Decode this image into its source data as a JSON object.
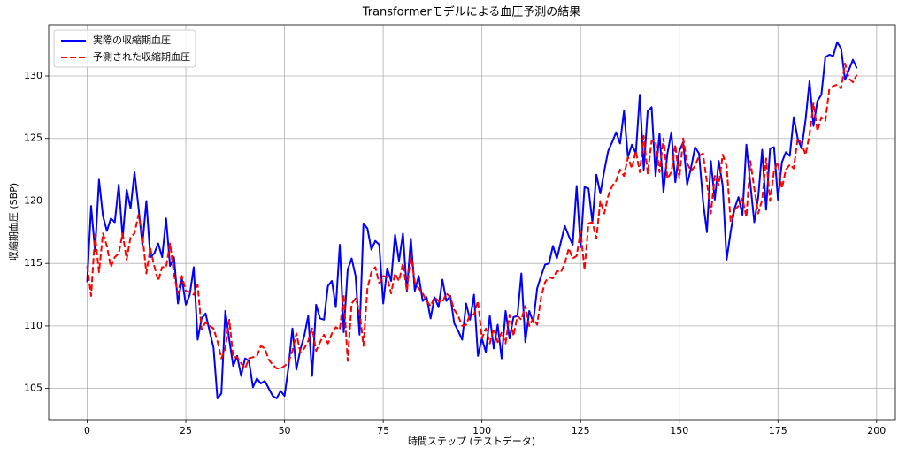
{
  "chart_data": {
    "type": "line",
    "title": "Transformerモデルによる血圧予測の結果",
    "x_label": "時間ステップ (テストデータ)",
    "y_label": "収縮期血圧 (SBP)",
    "x": [
      0,
      1,
      2,
      3,
      4,
      5,
      6,
      7,
      8,
      9,
      10,
      11,
      12,
      13,
      14,
      15,
      16,
      17,
      18,
      19,
      20,
      21,
      22,
      23,
      24,
      25,
      26,
      27,
      28,
      29,
      30,
      31,
      32,
      33,
      34,
      35,
      36,
      37,
      38,
      39,
      40,
      41,
      42,
      43,
      44,
      45,
      46,
      47,
      48,
      49,
      50,
      51,
      52,
      53,
      54,
      55,
      56,
      57,
      58,
      59,
      60,
      61,
      62,
      63,
      64,
      65,
      66,
      67,
      68,
      69,
      70,
      71,
      72,
      73,
      74,
      75,
      76,
      77,
      78,
      79,
      80,
      81,
      82,
      83,
      84,
      85,
      86,
      87,
      88,
      89,
      90,
      91,
      92,
      93,
      94,
      95,
      96,
      97,
      98,
      99,
      100,
      101,
      102,
      103,
      104,
      105,
      106,
      107,
      108,
      109,
      110,
      111,
      112,
      113,
      114,
      115,
      116,
      117,
      118,
      119,
      120,
      121,
      122,
      123,
      124,
      125,
      126,
      127,
      128,
      129,
      130,
      131,
      132,
      133,
      134,
      135,
      136,
      137,
      138,
      139,
      140,
      141,
      142,
      143,
      144,
      145,
      146,
      147,
      148,
      149,
      150,
      151,
      152,
      153,
      154,
      155,
      156,
      157,
      158,
      159,
      160,
      161,
      162,
      163,
      164,
      165,
      166,
      167,
      168,
      169,
      170,
      171,
      172,
      173,
      174,
      175,
      176,
      177,
      178,
      179,
      180,
      181,
      182,
      183,
      184,
      185,
      186,
      187,
      188,
      189,
      190,
      191,
      192,
      193,
      194,
      195
    ],
    "series": [
      {
        "name": "実際の収縮期血圧",
        "color": "#0000ff",
        "dashed": false,
        "values": [
          113.5,
          119.6,
          116.0,
          121.7,
          118.8,
          117.6,
          118.6,
          118.3,
          121.3,
          117.0,
          120.9,
          119.4,
          122.3,
          119.5,
          116.5,
          120.0,
          115.5,
          115.8,
          116.6,
          115.5,
          118.6,
          114.8,
          115.5,
          111.8,
          113.8,
          111.7,
          112.5,
          114.7,
          108.9,
          110.6,
          111.0,
          109.6,
          108.3,
          104.2,
          104.6,
          111.2,
          108.9,
          106.8,
          107.6,
          106.0,
          107.4,
          107.2,
          105.1,
          105.8,
          105.4,
          105.6,
          105.0,
          104.4,
          104.2,
          104.8,
          104.4,
          106.7,
          109.8,
          106.5,
          108.1,
          109.2,
          110.8,
          106.0,
          111.7,
          110.6,
          110.5,
          113.2,
          113.6,
          111.5,
          116.5,
          109.5,
          114.5,
          115.4,
          114.0,
          109.3,
          118.2,
          117.8,
          116.1,
          116.8,
          116.5,
          111.8,
          114.6,
          113.6,
          117.3,
          115.2,
          117.4,
          112.8,
          117.0,
          112.8,
          114.0,
          112.0,
          112.3,
          110.6,
          112.3,
          111.5,
          113.7,
          112.0,
          112.4,
          110.2,
          109.6,
          108.9,
          111.8,
          110.5,
          112.5,
          107.6,
          109.0,
          107.9,
          110.8,
          108.2,
          110.1,
          107.4,
          111.2,
          109.0,
          110.7,
          110.8,
          114.2,
          108.7,
          111.2,
          110.3,
          113.0,
          114.0,
          114.9,
          115.0,
          116.4,
          115.4,
          116.7,
          118.0,
          117.2,
          116.5,
          121.2,
          116.3,
          121.1,
          121.0,
          118.3,
          122.1,
          120.6,
          122.4,
          124.0,
          124.7,
          125.5,
          124.6,
          127.2,
          123.5,
          124.5,
          123.8,
          128.5,
          122.5,
          127.2,
          127.5,
          122.0,
          125.4,
          120.7,
          123.8,
          125.5,
          121.5,
          124.0,
          124.7,
          121.3,
          122.7,
          124.3,
          123.8,
          120.0,
          117.5,
          123.2,
          120.1,
          123.2,
          121.2,
          115.3,
          117.5,
          119.4,
          120.3,
          118.9,
          124.5,
          121.4,
          118.3,
          120.3,
          124.1,
          119.3,
          124.2,
          124.3,
          120.1,
          123.1,
          123.9,
          123.6,
          126.7,
          125.0,
          124.2,
          126.5,
          129.6,
          126.0,
          128.0,
          128.5,
          131.5,
          131.7,
          131.6,
          132.7,
          132.2,
          129.7,
          130.5,
          131.3,
          130.6
        ]
      },
      {
        "name": "予測された収縮期血圧",
        "color": "#ff0000",
        "dashed": true,
        "values": [
          114.8,
          112.4,
          117.3,
          114.3,
          117.4,
          116.4,
          114.7,
          115.5,
          115.8,
          117.4,
          115.3,
          117.1,
          117.4,
          118.9,
          117.3,
          114.2,
          116.2,
          114.8,
          113.6,
          114.7,
          114.7,
          116.6,
          114.1,
          112.6,
          114.0,
          112.8,
          112.7,
          112.5,
          113.3,
          109.7,
          110.3,
          110.0,
          109.8,
          108.8,
          107.4,
          108.2,
          110.5,
          107.5,
          107.5,
          107.0,
          106.6,
          107.4,
          107.5,
          107.6,
          108.4,
          108.2,
          107.3,
          106.9,
          106.6,
          106.6,
          106.8,
          107.1,
          108.0,
          109.4,
          107.9,
          108.2,
          108.8,
          109.8,
          108.0,
          108.7,
          109.3,
          108.6,
          109.4,
          109.9,
          109.7,
          112.5,
          107.2,
          111.8,
          112.2,
          111.2,
          108.4,
          113.0,
          114.3,
          114.7,
          113.4,
          114.0,
          113.9,
          112.6,
          114.2,
          113.6,
          115.0,
          112.8,
          115.8,
          113.5,
          113.0,
          112.6,
          112.0,
          111.6,
          112.3,
          112.0,
          111.9,
          112.6,
          112.3,
          111.3,
          110.8,
          110.0,
          110.1,
          110.9,
          110.9,
          112.0,
          109.0,
          109.8,
          108.6,
          109.8,
          108.7,
          109.5,
          108.6,
          110.9,
          109.2,
          110.8,
          110.5,
          111.6,
          110.0,
          110.6,
          110.1,
          112.3,
          113.5,
          113.9,
          113.8,
          114.4,
          114.3,
          115.0,
          116.2,
          115.4,
          115.6,
          117.6,
          114.5,
          118.2,
          118.3,
          117.0,
          120.0,
          119.0,
          120.4,
          121.2,
          121.6,
          122.5,
          122.0,
          123.5,
          122.6,
          124.0,
          122.3,
          125.2,
          122.2,
          124.8,
          124.8,
          122.3,
          125.0,
          121.8,
          122.3,
          124.5,
          121.8,
          125.0,
          123.0,
          122.4,
          122.8,
          123.6,
          123.8,
          121.5,
          119.0,
          122.0,
          121.3,
          123.7,
          122.8,
          118.4,
          119.3,
          119.6,
          120.2,
          118.7,
          123.2,
          121.0,
          119.0,
          120.1,
          123.4,
          120.0,
          122.4,
          123.1,
          121.0,
          122.5,
          122.9,
          122.6,
          125.0,
          124.6,
          123.7,
          125.3,
          127.8,
          125.6,
          126.7,
          126.4,
          128.9,
          129.2,
          129.3,
          129.0,
          131.0,
          129.8,
          129.5,
          130.1
        ]
      }
    ],
    "xlim": [
      -9.75,
      204.75
    ],
    "xticks": [
      0,
      25,
      50,
      75,
      100,
      125,
      150,
      175,
      200
    ],
    "ylim": [
      102.5,
      134.1
    ],
    "yticks": [
      105,
      110,
      115,
      120,
      125,
      130
    ],
    "grid": true,
    "legend": "upper left"
  }
}
